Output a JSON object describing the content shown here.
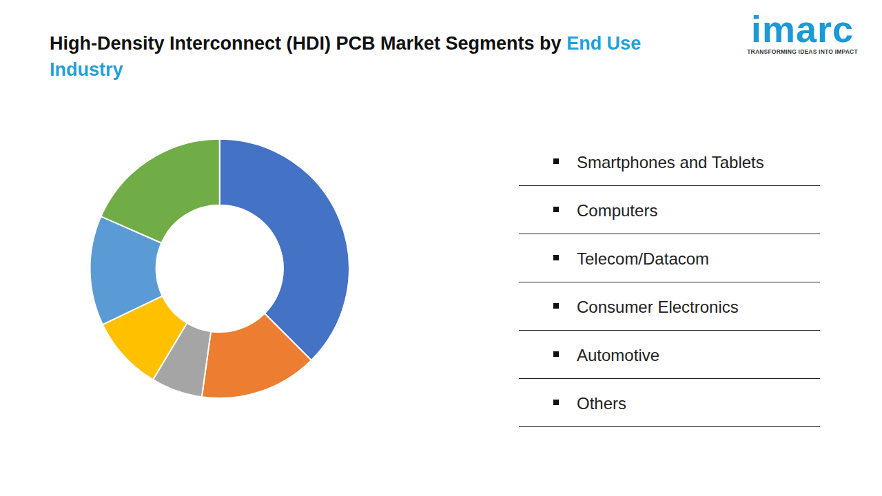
{
  "chart_data": {
    "type": "pie",
    "title": "High-Density Interconnect (HDI) PCB Market Segments by End Use Industry",
    "categories": [
      "Smartphones and Tablets",
      "Computers",
      "Telecom/Datacom",
      "Consumer Electronics",
      "Automotive",
      "Others"
    ],
    "values": [
      37.5,
      14.7,
      6.4,
      9.3,
      13.7,
      18.4
    ],
    "colors": [
      "#4472c4",
      "#ed7d31",
      "#a5a5a5",
      "#ffc000",
      "#5b9bd5",
      "#70ad47"
    ],
    "data_labels": false,
    "legend": "right"
  },
  "logo": {
    "text": "imarc",
    "tagline": "TRANSFORMING IDEAS INTO IMPACT"
  }
}
